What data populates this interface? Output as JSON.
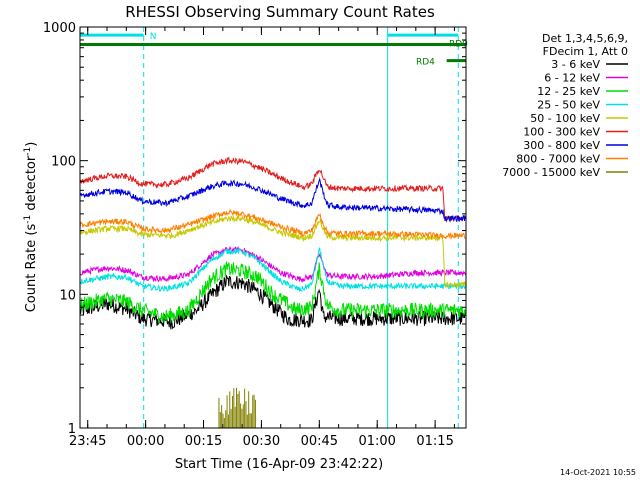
{
  "chart_data": {
    "type": "line",
    "title": "RHESSI Observing Summary Count Rates",
    "xlabel": "Start Time (16-Apr-09 23:42:22)",
    "ylabel_parts": [
      "Count Rate (s",
      "-1",
      " detector",
      "-1",
      ")"
    ],
    "yscale": "log",
    "ylim": [
      1,
      1000
    ],
    "xlim_minutes": [
      -2,
      98
    ],
    "x_tick_labels": [
      "23:45",
      "00:00",
      "00:15",
      "00:30",
      "00:45",
      "01:00",
      "01:15"
    ],
    "x_tick_minutes": [
      0,
      15,
      30,
      45,
      60,
      75,
      90
    ],
    "y_tick_labels": [
      "1",
      "10",
      "100",
      "1000"
    ],
    "y_tick_values": [
      1,
      10,
      100,
      1000
    ],
    "legend_header": [
      "Det 1,3,4,5,6,9,",
      "FDecim 1, Att 0"
    ],
    "legend_placement": "right",
    "footer_date": "14-Oct-2021 10:55",
    "colors": {
      "cyan": "#00e0e0",
      "green_bar": "#007a00"
    },
    "annotations": {
      "night_label": "N",
      "rd0": "RD0",
      "rd4": "RD4"
    },
    "vertical_markers_minutes": {
      "solid": [
        -2,
        77.7
      ],
      "dashed": [
        14.5,
        96
      ]
    },
    "night_bars": [
      {
        "label": "N",
        "x_start": -2,
        "x_end": 14.5,
        "level": 870
      },
      {
        "label": "",
        "x_start": 77.7,
        "x_end": 96,
        "level": 870
      }
    ],
    "rd_bars": [
      {
        "label": "RD0",
        "x_start": -2,
        "x_end": 98,
        "level": 740
      },
      {
        "label": "RD4",
        "x_start": 93,
        "x_end": 98,
        "level": 560
      }
    ],
    "series": [
      {
        "name": "3 - 6 keV",
        "color": "#000000",
        "points": [
          [
            -2,
            7.5
          ],
          [
            5,
            8.5
          ],
          [
            10,
            7.8
          ],
          [
            14,
            6.6
          ],
          [
            16,
            6.5
          ],
          [
            22,
            6.2
          ],
          [
            28,
            7.5
          ],
          [
            33,
            10.5
          ],
          [
            36,
            12.5
          ],
          [
            40,
            12.2
          ],
          [
            44,
            10.5
          ],
          [
            48,
            8.2
          ],
          [
            52,
            6.5
          ],
          [
            58,
            6.4
          ],
          [
            60,
            11
          ],
          [
            61,
            6.8
          ],
          [
            65,
            6.6
          ],
          [
            75,
            6.6
          ],
          [
            85,
            6.6
          ],
          [
            98,
            6.6
          ]
        ]
      },
      {
        "name": "6 - 12 keV",
        "color": "#e000e0",
        "points": [
          [
            -2,
            14.5
          ],
          [
            5,
            15.8
          ],
          [
            10,
            15.2
          ],
          [
            14,
            13.5
          ],
          [
            20,
            13
          ],
          [
            26,
            14
          ],
          [
            32,
            19.5
          ],
          [
            36,
            21.5
          ],
          [
            40,
            21.5
          ],
          [
            44,
            19
          ],
          [
            50,
            14.5
          ],
          [
            55,
            13
          ],
          [
            58,
            13.5
          ],
          [
            60,
            20
          ],
          [
            62,
            14
          ],
          [
            65,
            13.6
          ],
          [
            75,
            13.6
          ],
          [
            85,
            14.5
          ],
          [
            98,
            14.5
          ]
        ]
      },
      {
        "name": "12 - 25 keV",
        "color": "#00dd00",
        "points": [
          [
            -2,
            8.3
          ],
          [
            5,
            9.3
          ],
          [
            10,
            8.8
          ],
          [
            14,
            7.6
          ],
          [
            20,
            6.8
          ],
          [
            26,
            7.5
          ],
          [
            32,
            13
          ],
          [
            36,
            15.5
          ],
          [
            40,
            15
          ],
          [
            44,
            13.5
          ],
          [
            48,
            10
          ],
          [
            54,
            7.6
          ],
          [
            58,
            8
          ],
          [
            60,
            15.5
          ],
          [
            62,
            8.3
          ],
          [
            65,
            7.6
          ],
          [
            75,
            7.6
          ],
          [
            85,
            7.6
          ],
          [
            98,
            7.6
          ]
        ]
      },
      {
        "name": "25 - 50 keV",
        "color": "#00e0e0",
        "points": [
          [
            -2,
            12.5
          ],
          [
            5,
            13.5
          ],
          [
            10,
            13.5
          ],
          [
            14,
            11.5
          ],
          [
            20,
            11
          ],
          [
            26,
            12
          ],
          [
            32,
            18
          ],
          [
            36,
            21
          ],
          [
            40,
            21
          ],
          [
            44,
            18
          ],
          [
            50,
            12.5
          ],
          [
            55,
            10.8
          ],
          [
            58,
            11.8
          ],
          [
            60,
            22
          ],
          [
            62,
            12.5
          ],
          [
            65,
            11.5
          ],
          [
            75,
            11.5
          ],
          [
            85,
            11.5
          ],
          [
            92,
            11.5
          ],
          [
            98,
            11.5
          ]
        ]
      },
      {
        "name": "50 - 100 keV",
        "color": "#c8c800",
        "points": [
          [
            -2,
            29
          ],
          [
            5,
            31
          ],
          [
            10,
            31
          ],
          [
            14,
            28
          ],
          [
            22,
            27.5
          ],
          [
            30,
            33
          ],
          [
            36,
            37
          ],
          [
            40,
            37
          ],
          [
            44,
            34
          ],
          [
            50,
            29
          ],
          [
            56,
            26.5
          ],
          [
            58,
            27.5
          ],
          [
            60,
            36
          ],
          [
            62,
            27
          ],
          [
            65,
            26.5
          ],
          [
            75,
            26.5
          ],
          [
            85,
            26.5
          ],
          [
            92,
            26.5
          ],
          [
            92.5,
            11.8
          ],
          [
            98,
            11.8
          ]
        ]
      },
      {
        "name": "100 - 300 keV",
        "color": "#e02020",
        "points": [
          [
            -2,
            70
          ],
          [
            5,
            77
          ],
          [
            10,
            76
          ],
          [
            14,
            67
          ],
          [
            20,
            66
          ],
          [
            26,
            74
          ],
          [
            32,
            94
          ],
          [
            36,
            100
          ],
          [
            40,
            99
          ],
          [
            44,
            90
          ],
          [
            50,
            74
          ],
          [
            56,
            63
          ],
          [
            58,
            67
          ],
          [
            60,
            88
          ],
          [
            62,
            64
          ],
          [
            65,
            62
          ],
          [
            75,
            62
          ],
          [
            85,
            62
          ],
          [
            92,
            62
          ],
          [
            92.5,
            37
          ],
          [
            98,
            37
          ]
        ]
      },
      {
        "name": "300 - 800 keV",
        "color": "#0000e0",
        "points": [
          [
            -2,
            55
          ],
          [
            5,
            59
          ],
          [
            10,
            58
          ],
          [
            14,
            50
          ],
          [
            20,
            48
          ],
          [
            26,
            54
          ],
          [
            32,
            64
          ],
          [
            36,
            68
          ],
          [
            40,
            67
          ],
          [
            44,
            62
          ],
          [
            50,
            52
          ],
          [
            56,
            46
          ],
          [
            58,
            48
          ],
          [
            60,
            72
          ],
          [
            62,
            47
          ],
          [
            65,
            45
          ],
          [
            75,
            44
          ],
          [
            85,
            43
          ],
          [
            92,
            42
          ],
          [
            92.5,
            37
          ],
          [
            98,
            37
          ]
        ]
      },
      {
        "name": "800 - 7000 keV",
        "color": "#ff7f00",
        "points": [
          [
            -2,
            33
          ],
          [
            5,
            35
          ],
          [
            10,
            35
          ],
          [
            14,
            31
          ],
          [
            20,
            30
          ],
          [
            26,
            33
          ],
          [
            32,
            38
          ],
          [
            36,
            41
          ],
          [
            40,
            40
          ],
          [
            44,
            37
          ],
          [
            50,
            32
          ],
          [
            56,
            28.5
          ],
          [
            58,
            30
          ],
          [
            60,
            40
          ],
          [
            62,
            29
          ],
          [
            65,
            28.5
          ],
          [
            75,
            28.5
          ],
          [
            85,
            28
          ],
          [
            92,
            27.5
          ],
          [
            98,
            27.5
          ]
        ]
      },
      {
        "name": "7000 - 15000 keV",
        "color": "#808000",
        "points": [
          [
            -2,
            1
          ],
          [
            34,
            1
          ],
          [
            34.5,
            2
          ],
          [
            35.5,
            1
          ],
          [
            36.5,
            2
          ],
          [
            37.5,
            1.2
          ],
          [
            38.5,
            2
          ],
          [
            39.5,
            1.3
          ],
          [
            40.5,
            2
          ],
          [
            41.5,
            1.1
          ],
          [
            42.5,
            2
          ],
          [
            43.5,
            1
          ],
          [
            98,
            1
          ]
        ]
      }
    ]
  }
}
